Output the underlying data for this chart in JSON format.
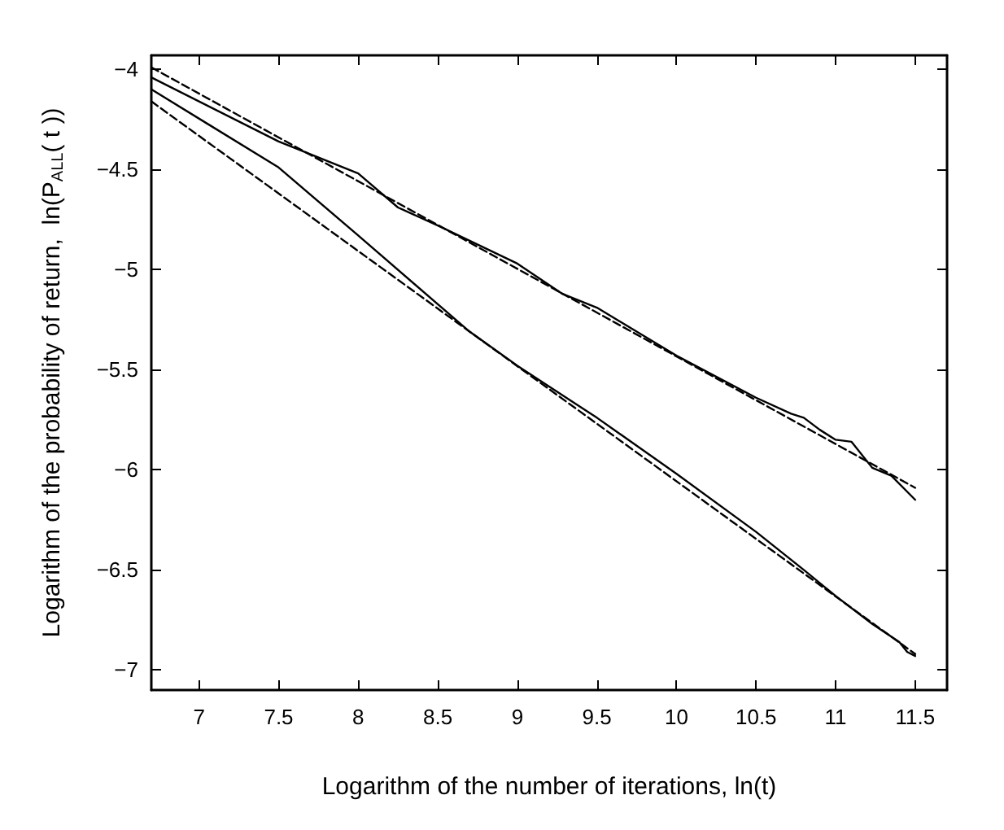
{
  "chart_data": {
    "type": "line",
    "xlabel": "Logarithm of the number of iterations, ln(t)",
    "ylabel": "Logarithm of the probability of return,  ln(P$_{ALL}$( t ))",
    "xlim": [
      6.7,
      11.7
    ],
    "xticks": [
      7,
      7.5,
      8,
      8.5,
      9,
      9.5,
      10,
      10.5,
      11,
      11.5
    ],
    "ylim": [
      -7.1,
      -3.93
    ],
    "yticks": [
      -7,
      -6.5,
      -6,
      -5.5,
      -5,
      -4.5,
      -4
    ],
    "grid": false,
    "marker": "none",
    "series": [
      {
        "color": "#000000",
        "line_style": "solid",
        "x": [
          6.7,
          7.5,
          8,
          8.25,
          8.5,
          9,
          9.28,
          9.5,
          10,
          10.5,
          10.72,
          10.8,
          10.9,
          11,
          11.1,
          11.23,
          11.35,
          11.5
        ],
        "values": [
          -4.04,
          -4.36,
          -4.52,
          -4.69,
          -4.78,
          -4.97,
          -5.12,
          -5.19,
          -5.43,
          -5.64,
          -5.72,
          -5.74,
          -5.8,
          -5.85,
          -5.86,
          -5.99,
          -6.03,
          -6.15
        ]
      },
      {
        "color": "#000000",
        "line_style": "dashed",
        "x": [
          6.7,
          11.5
        ],
        "values": [
          -3.99,
          -6.09
        ]
      },
      {
        "color": "#000000",
        "line_style": "solid",
        "x": [
          6.7,
          7.5,
          8,
          8.7,
          9,
          9.5,
          10,
          10.5,
          10.8,
          11,
          11.23,
          11.4,
          11.45,
          11.5
        ],
        "values": [
          -4.1,
          -4.49,
          -4.83,
          -5.31,
          -5.48,
          -5.74,
          -6.02,
          -6.31,
          -6.5,
          -6.63,
          -6.77,
          -6.86,
          -6.91,
          -6.93
        ]
      },
      {
        "color": "#000000",
        "line_style": "dashed",
        "x": [
          6.7,
          11.5
        ],
        "values": [
          -4.16,
          -6.92
        ]
      }
    ]
  }
}
